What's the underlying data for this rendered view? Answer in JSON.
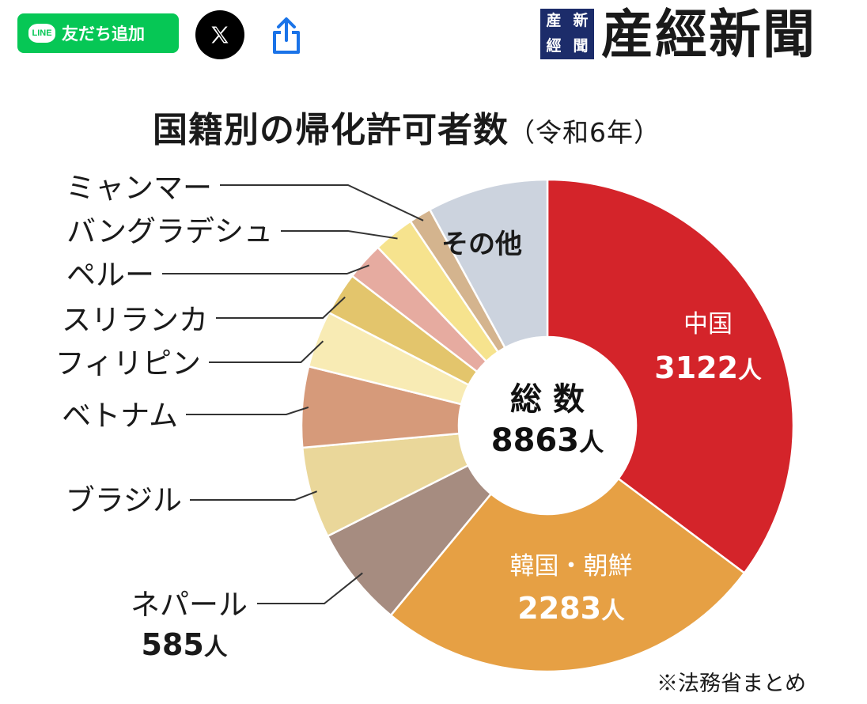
{
  "header": {
    "line_logo": "LINE",
    "line_label": "友だち追加",
    "x_label": "X",
    "share_label": "share",
    "brand_seal": [
      "産",
      "新",
      "經",
      "聞"
    ],
    "brand_name": "産經新聞"
  },
  "colors": {
    "line_green": "#06c755",
    "share_blue": "#1a73e8",
    "brand_navy": "#1c2c6a"
  },
  "icons": {
    "line": "line-icon",
    "x": "x-icon",
    "share": "share-icon"
  },
  "chart_data": {
    "type": "pie",
    "title": "国籍別の帰化許可者数",
    "subtitle": "（令和6年）",
    "total_label": "総 数",
    "total_value": "8863",
    "unit": "人",
    "total": 8863,
    "slices": [
      {
        "name": "中国",
        "value": 3122,
        "value_label": "3122",
        "color": "#d4242a"
      },
      {
        "name": "韓国・朝鮮",
        "value": 2283,
        "value_label": "2283",
        "color": "#e6a044"
      },
      {
        "name": "ネパール",
        "value": 585,
        "value_label": "585",
        "color": "#a68c80"
      },
      {
        "name": "ブラジル",
        "value": 530,
        "color": "#ead79a"
      },
      {
        "name": "ベトナム",
        "value": 470,
        "color": "#d69a7a"
      },
      {
        "name": "フィリピン",
        "value": 330,
        "color": "#f8ebb4"
      },
      {
        "name": "スリランカ",
        "value": 250,
        "color": "#e3c56c"
      },
      {
        "name": "ペルー",
        "value": 220,
        "color": "#e6aba0"
      },
      {
        "name": "バングラデシュ",
        "value": 240,
        "color": "#f6e38e"
      },
      {
        "name": "ミャンマー",
        "value": 130,
        "color": "#d4b48e"
      },
      {
        "name": "その他",
        "value": 703,
        "color": "#ccd3de"
      }
    ],
    "source": "※法務省まとめ"
  }
}
